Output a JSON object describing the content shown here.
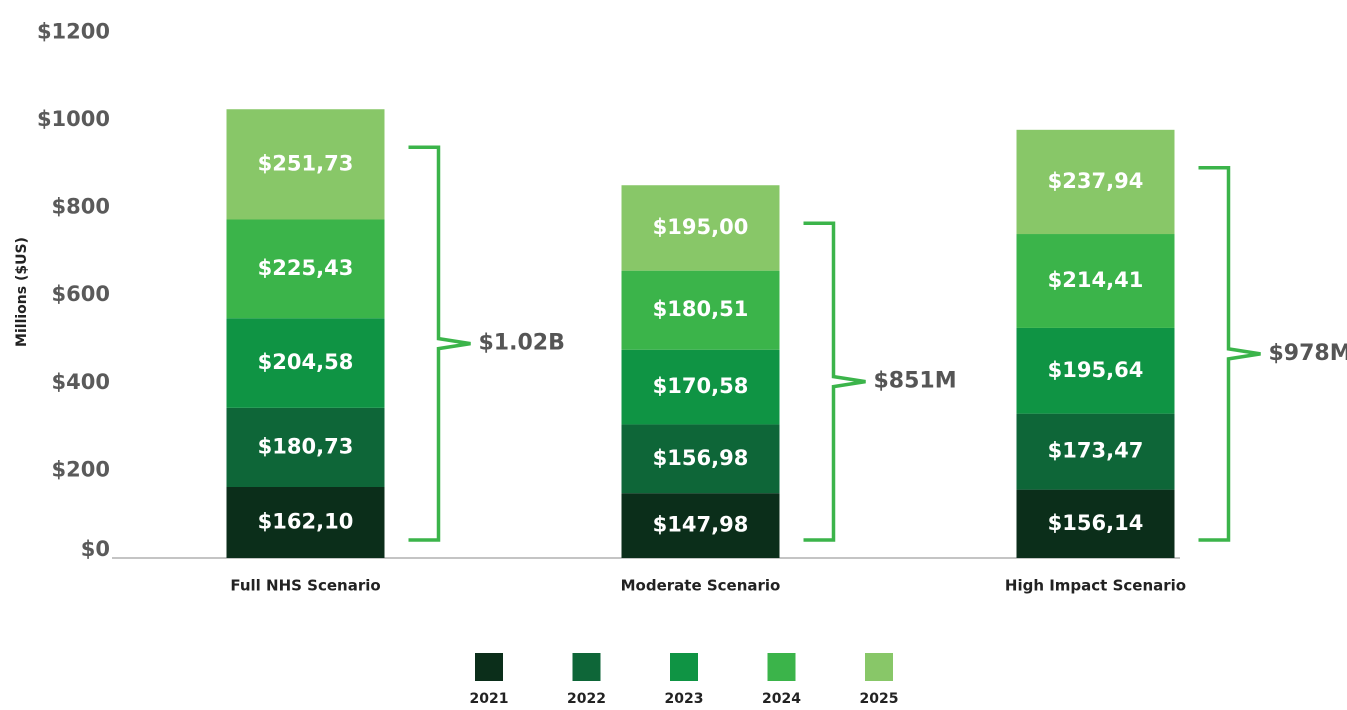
{
  "chart_data": {
    "type": "stacked_bar",
    "y_label": "Millions ($US)",
    "categories": [
      "Full NHS Scenario",
      "Moderate Scenario",
      "High Impact Scenario"
    ],
    "series": [
      {
        "name": "2021",
        "color": "#0b2e1a",
        "values": [
          162.1,
          147.98,
          156.14
        ],
        "value_labels": [
          "$162,10",
          "$147,98",
          "$156,14"
        ]
      },
      {
        "name": "2022",
        "color": "#0e6638",
        "values": [
          180.73,
          156.98,
          173.47
        ],
        "value_labels": [
          "$180,73",
          "$156,98",
          "$173,47"
        ]
      },
      {
        "name": "2023",
        "color": "#0f9444",
        "values": [
          204.58,
          170.58,
          195.64
        ],
        "value_labels": [
          "$204,58",
          "$170,58",
          "$195,64"
        ]
      },
      {
        "name": "2024",
        "color": "#3bb44a",
        "values": [
          225.43,
          180.51,
          214.41
        ],
        "value_labels": [
          "$225,43",
          "$180,51",
          "$214,41"
        ]
      },
      {
        "name": "2025",
        "color": "#88c768",
        "values": [
          251.73,
          195.0,
          237.94
        ],
        "value_labels": [
          "$251,73",
          "$195,00",
          "$237,94"
        ]
      }
    ],
    "annotations": [
      "$1.02B",
      "$851M",
      "$978M"
    ],
    "bracket_color": "#3bb44a",
    "ylim": [
      0,
      1200
    ],
    "yticks": [
      {
        "value": 0,
        "label": "$0"
      },
      {
        "value": 200,
        "label": "$200"
      },
      {
        "value": 400,
        "label": "$400"
      },
      {
        "value": 600,
        "label": "$600"
      },
      {
        "value": 800,
        "label": "$800"
      },
      {
        "value": 1000,
        "label": "$1000"
      },
      {
        "value": 1200,
        "label": "$1200"
      }
    ],
    "grid": false
  }
}
